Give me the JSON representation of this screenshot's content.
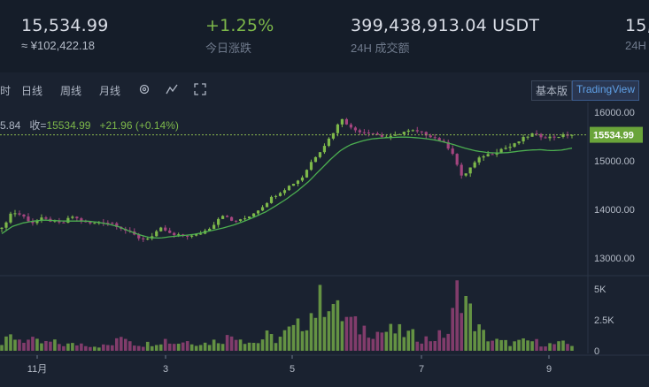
{
  "ticker": {
    "last_price": "15,534.99",
    "cny_price": "≈ ¥102,422.18",
    "change_pct": "+1.25",
    "change_pct_label": "今日涨跌",
    "volume_24h": "399,438,913.04 USDT",
    "volume_24h_label": "24H 成交额",
    "cut_value": "15,",
    "cut_label": "24H"
  },
  "toolbar": {
    "partial": "时",
    "day": "日线",
    "week": "周线",
    "month": "月线",
    "basic": "基本版",
    "tradingview": "TradingView"
  },
  "ohlc": {
    "partial": "5.84",
    "close_label": "收=",
    "close_value": "15534.99",
    "change": "+21.96",
    "change_pct": "(+0.14%)"
  },
  "price_tag": "15534.99",
  "price_axis": [
    "16000.00",
    "15000.00",
    "14000.00",
    "13000.00"
  ],
  "volume_axis": [
    "5K",
    "2.5K",
    "0"
  ],
  "time_axis": [
    "11月",
    "3",
    "5",
    "7",
    "9"
  ],
  "colors": {
    "up": "#7db84a",
    "down": "#a4457f",
    "ma": "#4caf50",
    "tag": "#6aa43a"
  },
  "chart_data": {
    "type": "candlestick",
    "x": [
      "11月",
      "3",
      "5",
      "7",
      "9"
    ],
    "price_ticks": [
      13000,
      14000,
      15000,
      16000
    ],
    "volume_ticks": [
      0,
      2500,
      5000
    ],
    "last_close": 15534.99,
    "price_path": [
      13600,
      13950,
      13880,
      13720,
      13810,
      13760,
      13700,
      13860,
      13760,
      13700,
      13750,
      13720,
      13610,
      13500,
      13380,
      13440,
      13620,
      13470,
      13460,
      13450,
      13520,
      13650,
      13900,
      13760,
      13780,
      13900,
      14050,
      14250,
      14380,
      14520,
      14650,
      15000,
      15250,
      15540,
      15880,
      15650,
      15600,
      15580,
      15500,
      15490,
      15590,
      15620,
      15570,
      15500,
      15400,
      15200,
      14650,
      14900,
      15100,
      15150,
      15250,
      15300,
      15450,
      15550,
      15500,
      15480,
      15520,
      15535
    ],
    "ma_path": [
      13500,
      13650,
      13720,
      13760,
      13780,
      13770,
      13760,
      13760,
      13760,
      13740,
      13700,
      13650,
      13560,
      13480,
      13420,
      13410,
      13440,
      13460,
      13480,
      13520,
      13570,
      13620,
      13680,
      13760,
      13850,
      13950,
      14080,
      14220,
      14380,
      14560,
      14780,
      15000,
      15200,
      15330,
      15400,
      15450,
      15470,
      15480,
      15490,
      15480,
      15460,
      15430,
      15380,
      15320,
      15250,
      15200,
      15170,
      15160,
      15170,
      15200,
      15220,
      15230,
      15210,
      15220,
      15260
    ],
    "volume_path": [
      500,
      1200,
      900,
      800,
      600,
      700,
      500,
      500,
      600,
      400,
      400,
      500,
      1400,
      600,
      500,
      700,
      900,
      600,
      800,
      700,
      600,
      800,
      1000,
      1400,
      800,
      600,
      1200,
      900,
      1500,
      1800,
      2800,
      3500,
      4800,
      3000,
      2500,
      1800,
      1800,
      1500,
      1600,
      1500,
      1300,
      1100,
      900,
      1200,
      1500,
      5800,
      3000,
      1500,
      900,
      700,
      600,
      700,
      800,
      600,
      500,
      600,
      500
    ]
  }
}
